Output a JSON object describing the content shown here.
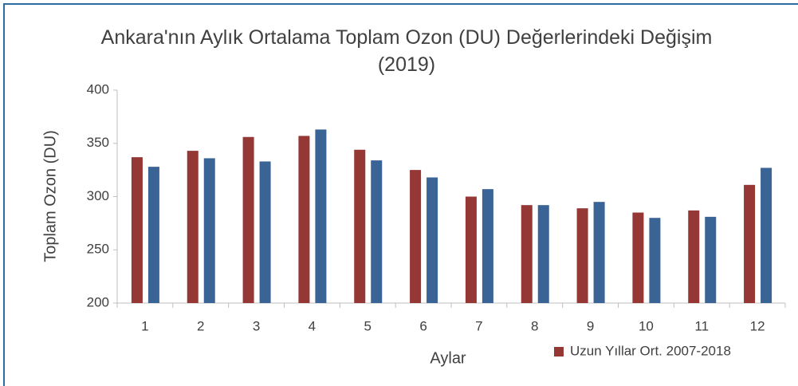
{
  "chart_data": {
    "type": "bar",
    "title": "Ankara'nın Aylık Ortalama Toplam Ozon (DU) Değerlerindeki Değişim (2019)",
    "x_label": "Aylar",
    "y_label": "Toplam Ozon (DU)",
    "categories": [
      "1",
      "2",
      "3",
      "4",
      "5",
      "6",
      "7",
      "8",
      "9",
      "10",
      "11",
      "12"
    ],
    "series": [
      {
        "name": "Uzun Yıllar Ort. 2007-2018",
        "color": "#953735",
        "values": [
          337,
          343,
          356,
          357,
          344,
          325,
          300,
          292,
          289,
          285,
          287,
          311
        ]
      },
      {
        "color": "#3a6496",
        "values": [
          328,
          336,
          333,
          363,
          334,
          318,
          307,
          292,
          295,
          280,
          281,
          327
        ]
      }
    ],
    "ylim": [
      200,
      400
    ],
    "yticks": [
      200,
      250,
      300,
      350,
      400
    ],
    "grid": false,
    "legend": "bottom-right"
  }
}
